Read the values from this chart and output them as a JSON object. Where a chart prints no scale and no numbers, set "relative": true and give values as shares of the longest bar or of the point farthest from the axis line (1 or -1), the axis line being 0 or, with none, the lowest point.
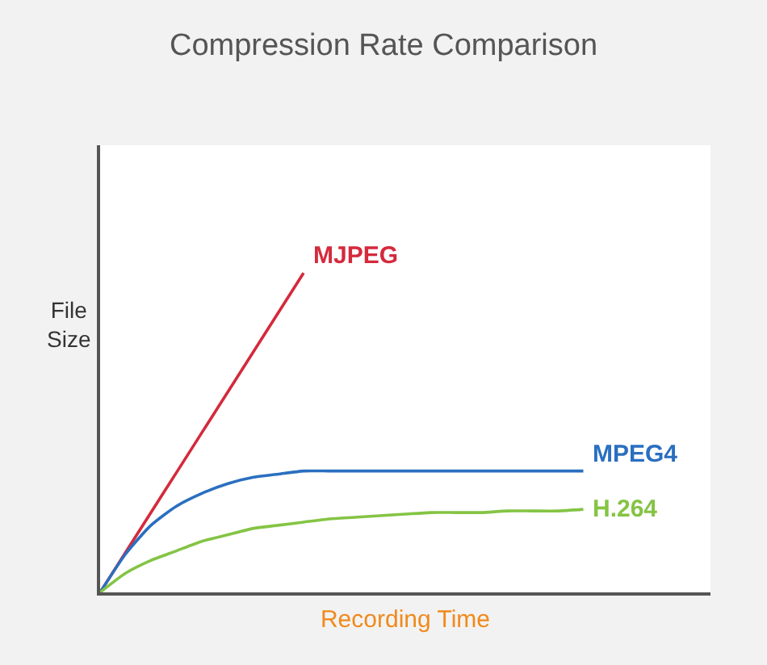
{
  "chart_data": {
    "type": "line",
    "title": "Compression Rate Comparison",
    "xlabel": "Recording Time",
    "ylabel": "File Size",
    "relative": true,
    "marker": "none",
    "legend": false,
    "categories": [
      null,
      null,
      null,
      null,
      null,
      null,
      null,
      null,
      null,
      null,
      null,
      null,
      null,
      null,
      null,
      null,
      null,
      null,
      null,
      null,
      null,
      null,
      null,
      null,
      null
    ],
    "series": [
      {
        "name": "MJPEG",
        "color": "#d42a3c",
        "values": [
          0,
          0.125,
          0.25,
          0.375,
          0.5,
          0.625,
          0.75,
          0.875,
          1,
          null,
          null,
          null,
          null,
          null,
          null,
          null,
          null,
          null,
          null,
          null,
          null,
          null,
          null,
          null,
          null
        ]
      },
      {
        "name": "MPEG4",
        "color": "#2a6fc0",
        "values": [
          0,
          0.12,
          0.21,
          0.27,
          0.31,
          0.34,
          0.36,
          0.37,
          0.38,
          0.38,
          0.38,
          0.38,
          0.38,
          0.38,
          0.38,
          0.38,
          0.38,
          0.38,
          0.38,
          0.38,
          null,
          null,
          null,
          null,
          null
        ]
      },
      {
        "name": "H.264",
        "color": "#84c444",
        "values": [
          0,
          0.06,
          0.1,
          0.13,
          0.16,
          0.18,
          0.2,
          0.21,
          0.22,
          0.23,
          0.235,
          0.24,
          0.245,
          0.25,
          0.25,
          0.25,
          0.255,
          0.255,
          0.255,
          0.26,
          null,
          null,
          null,
          null,
          null
        ]
      }
    ]
  }
}
